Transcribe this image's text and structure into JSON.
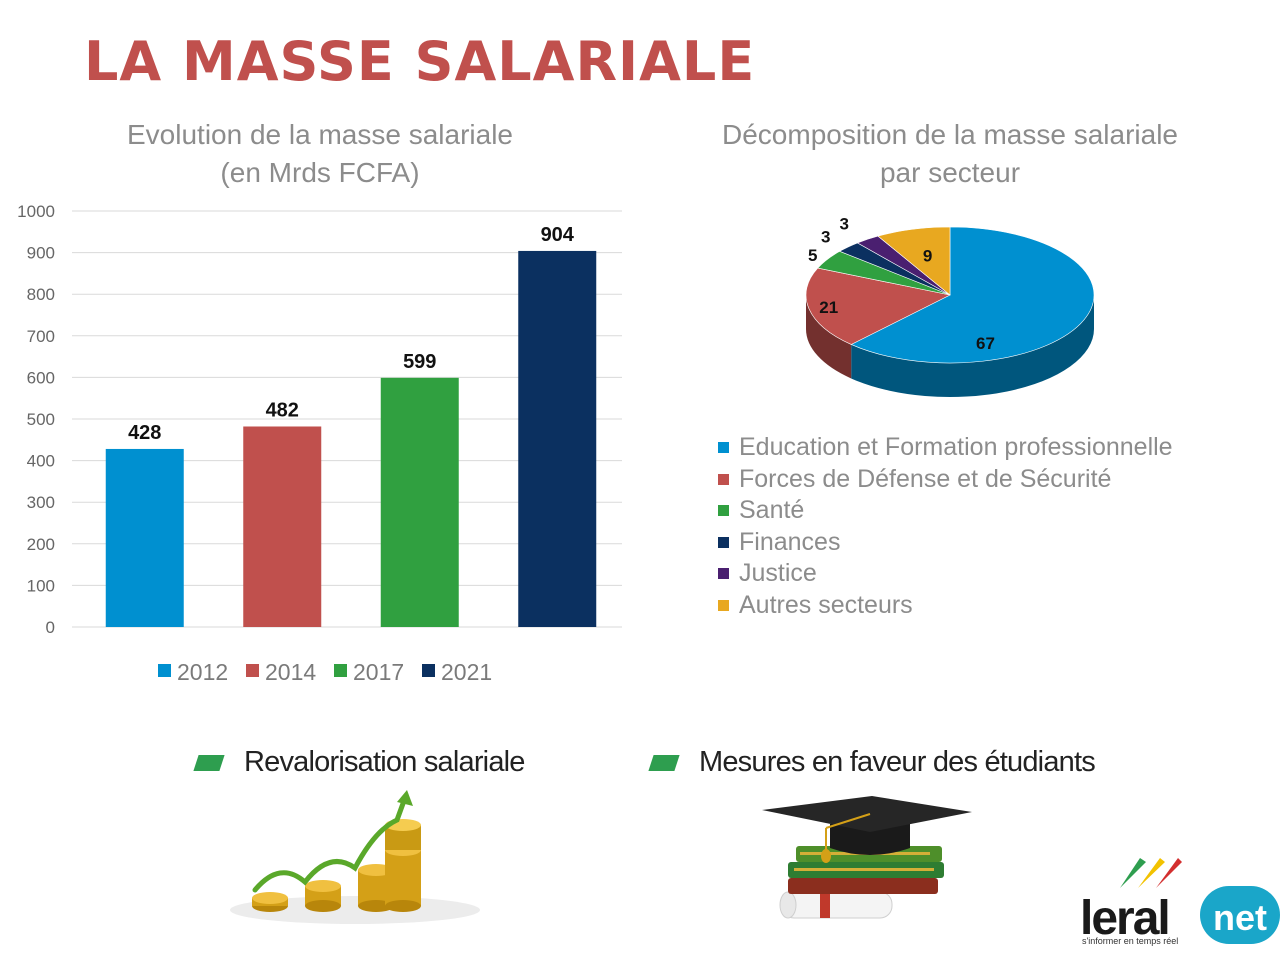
{
  "page": {
    "title": "LA MASSE SALARIALE"
  },
  "bar_section": {
    "title_line1": "Evolution de la masse salariale",
    "title_line2": "(en Mrds FCFA)"
  },
  "pie_section": {
    "title_line1": "Décomposition de la masse salariale",
    "title_line2": "par secteur"
  },
  "chart_data": [
    {
      "type": "bar",
      "title": "Evolution de la masse salariale (en Mrds FCFA)",
      "categories": [
        "2012",
        "2014",
        "2017",
        "2021"
      ],
      "values": [
        428,
        482,
        599,
        904
      ],
      "colors": [
        "#0090d0",
        "#c0504d",
        "#30a040",
        "#0b3060"
      ],
      "ylim": [
        0,
        1000
      ],
      "yticks": [
        0,
        100,
        200,
        300,
        400,
        500,
        600,
        700,
        800,
        900,
        1000
      ],
      "grid": true,
      "legend": "bottom"
    },
    {
      "type": "pie",
      "title": "Décomposition de la masse salariale par secteur",
      "labels": [
        "Education et Formation professionnelle",
        "Forces de Défense et de Sécurité",
        "Santé",
        "Finances",
        "Justice",
        "Autres secteurs"
      ],
      "values": [
        67,
        21,
        5,
        3,
        3,
        9
      ],
      "colors": [
        "#0090d0",
        "#c0504d",
        "#30a040",
        "#0b3060",
        "#4a1f70",
        "#e8a820"
      ],
      "style": "3d",
      "legend": "bottom"
    }
  ],
  "bullets": {
    "item1": "Revalorisation salariale",
    "item2": "Mesures en faveur des étudiants"
  },
  "logo": {
    "name": "leral",
    "suffix": "net",
    "tagline": "s'informer en temps réel"
  }
}
